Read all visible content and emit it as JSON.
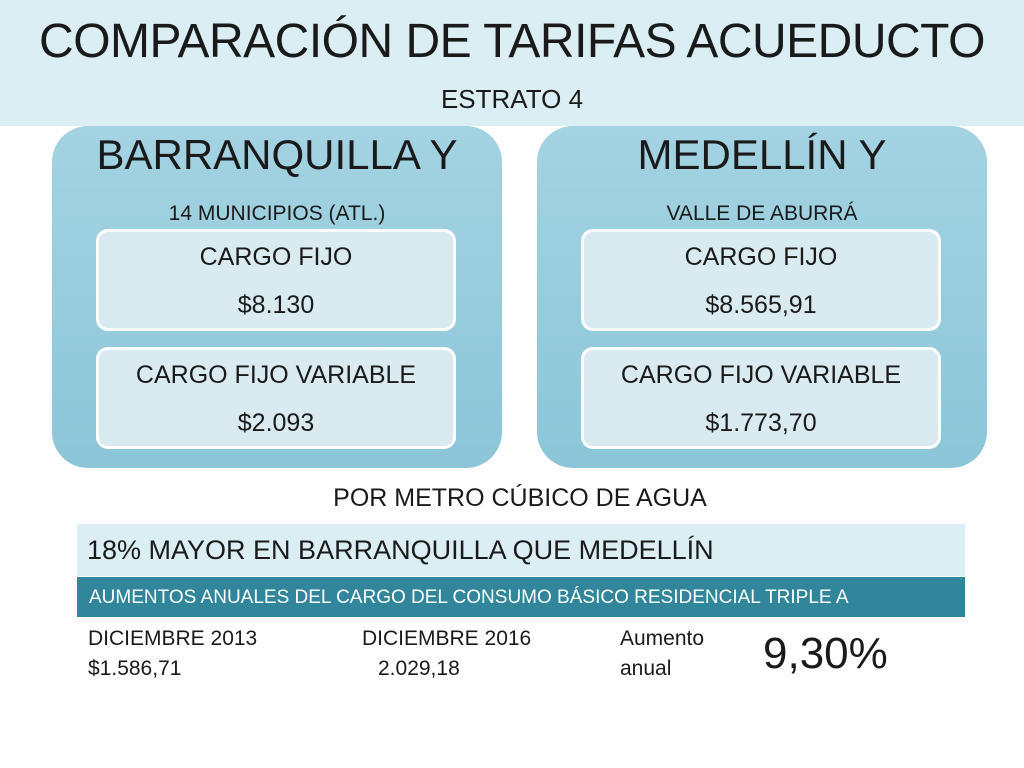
{
  "header": {
    "title": "COMPARACIÓN DE TARIFAS ACUEDUCTO",
    "subtitle": "ESTRATO 4"
  },
  "cities": [
    {
      "title": "BARRANQUILLA Y",
      "subtitle": "14 MUNICIPIOS (ATL.)",
      "cargo_fijo_label": "CARGO FIJO",
      "cargo_fijo_value": "$8.130",
      "cargo_variable_label": "CARGO FIJO VARIABLE",
      "cargo_variable_value": "$2.093"
    },
    {
      "title": "MEDELLÍN Y",
      "subtitle": "VALLE DE ABURRÁ",
      "cargo_fijo_label": "CARGO FIJO",
      "cargo_fijo_value": "$8.565,91",
      "cargo_variable_label": "CARGO FIJO VARIABLE",
      "cargo_variable_value": "$1.773,70"
    }
  ],
  "per_metro": "POR METRO CÚBICO DE AGUA",
  "mayor_row": "18%  MAYOR EN BARRANQUILLA QUE MEDELLÍN",
  "aumentos_row": "AUMENTOS ANUALES DEL CARGO DEL CONSUMO BÁSICO RESIDENCIAL TRIPLE A",
  "comparison": {
    "col1_label": "DICIEMBRE 2013",
    "col1_value": "$1.586,71",
    "col2_label": "DICIEMBRE 2016",
    "col2_value": "2.029,18",
    "col3_line1": "Aumento",
    "col3_line2": "anual",
    "percent": "9,30%"
  },
  "colors": {
    "header_bg": "#daeef3",
    "panel_bg": "#92c9da",
    "card_bg": "#d9eaf0",
    "accent_bar": "#31869b"
  }
}
